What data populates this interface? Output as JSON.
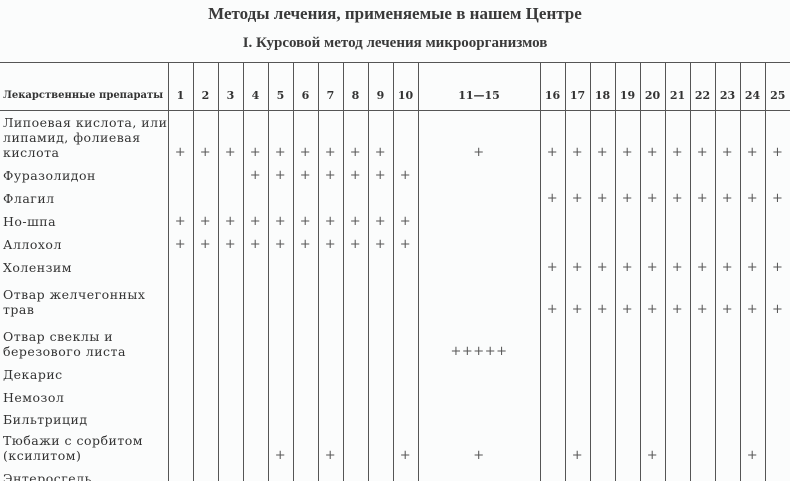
{
  "title": "Методы лечения, применяемые в нашем Центре",
  "subtitle": "I. Курсовой метод лечения микроорганизмов",
  "table": {
    "header_label": "Лекарственные препараты",
    "columns": [
      "1",
      "2",
      "3",
      "4",
      "5",
      "6",
      "7",
      "8",
      "9",
      "10",
      "11—15",
      "16",
      "17",
      "18",
      "19",
      "20",
      "21",
      "22",
      "23",
      "24",
      "25"
    ],
    "rows": [
      {
        "name": "Липоевая кислота, или липамид, фолиевая кислота",
        "marks": [
          "+",
          "+",
          "+",
          "+",
          "+",
          "+",
          "+",
          "+",
          "+",
          "",
          "+",
          "+",
          "+",
          "+",
          "+",
          "+",
          "+",
          "+",
          "+",
          "+",
          "+"
        ]
      },
      {
        "name": "Фуразолидон",
        "marks": [
          "",
          "",
          "",
          "+",
          "+",
          "+",
          "+",
          "+",
          "+",
          "+",
          "",
          "",
          "",
          "",
          "",
          "",
          "",
          "",
          "",
          "",
          ""
        ]
      },
      {
        "name": "Флагил",
        "marks": [
          "",
          "",
          "",
          "",
          "",
          "",
          "",
          "",
          "",
          "",
          "",
          "+",
          "+",
          "+",
          "+",
          "+",
          "+",
          "+",
          "+",
          "+",
          "+"
        ]
      },
      {
        "name": "Но-шпа",
        "marks": [
          "+",
          "+",
          "+",
          "+",
          "+",
          "+",
          "+",
          "+",
          "+",
          "+",
          "",
          "",
          "",
          "",
          "",
          "",
          "",
          "",
          "",
          "",
          ""
        ]
      },
      {
        "name": "Аллохол",
        "marks": [
          "+",
          "+",
          "+",
          "+",
          "+",
          "+",
          "+",
          "+",
          "+",
          "+",
          "",
          "",
          "",
          "",
          "",
          "",
          "",
          "",
          "",
          "",
          ""
        ]
      },
      {
        "name": "Холензим",
        "marks": [
          "",
          "",
          "",
          "",
          "",
          "",
          "",
          "",
          "",
          "",
          "",
          "+",
          "+",
          "+",
          "+",
          "+",
          "+",
          "+",
          "+",
          "+",
          "+"
        ]
      },
      {
        "name": "Отвар желчегонных трав",
        "marks": [
          "",
          "",
          "",
          "",
          "",
          "",
          "",
          "",
          "",
          "",
          "",
          "+",
          "+",
          "+",
          "+",
          "+",
          "+",
          "+",
          "+",
          "+",
          "+"
        ]
      },
      {
        "name": "Отвар свеклы и березового листа",
        "marks": [
          "",
          "",
          "",
          "",
          "",
          "",
          "",
          "",
          "",
          "",
          "+++++",
          "",
          "",
          "",
          "",
          "",
          "",
          "",
          "",
          "",
          ""
        ]
      },
      {
        "name": "Декарис",
        "marks": [
          "",
          "",
          "",
          "",
          "",
          "",
          "",
          "",
          "",
          "",
          "",
          "",
          "",
          "",
          "",
          "",
          "",
          "",
          "",
          "",
          ""
        ]
      },
      {
        "name": "Немозол",
        "marks": [
          "",
          "",
          "",
          "",
          "",
          "",
          "",
          "",
          "",
          "",
          "",
          "",
          "",
          "",
          "",
          "",
          "",
          "",
          "",
          "",
          ""
        ]
      },
      {
        "name": "Бильтрицид",
        "marks": [
          "",
          "",
          "",
          "",
          "",
          "",
          "",
          "",
          "",
          "",
          "",
          "",
          "",
          "",
          "",
          "",
          "",
          "",
          "",
          "",
          ""
        ]
      },
      {
        "name": "Тюбажи с сорбитом (ксилитом)",
        "marks": [
          "",
          "",
          "",
          "",
          "+",
          "",
          "+",
          "",
          "",
          "+",
          "+",
          "",
          "+",
          "",
          "",
          "+",
          "",
          "",
          "",
          "+",
          ""
        ]
      },
      {
        "name": "Энтеросгель",
        "marks": [
          "",
          "",
          "",
          "",
          "",
          "",
          "",
          "",
          "",
          "",
          "",
          "",
          "",
          "",
          "",
          "",
          "",
          "",
          "",
          "",
          ""
        ]
      }
    ]
  }
}
